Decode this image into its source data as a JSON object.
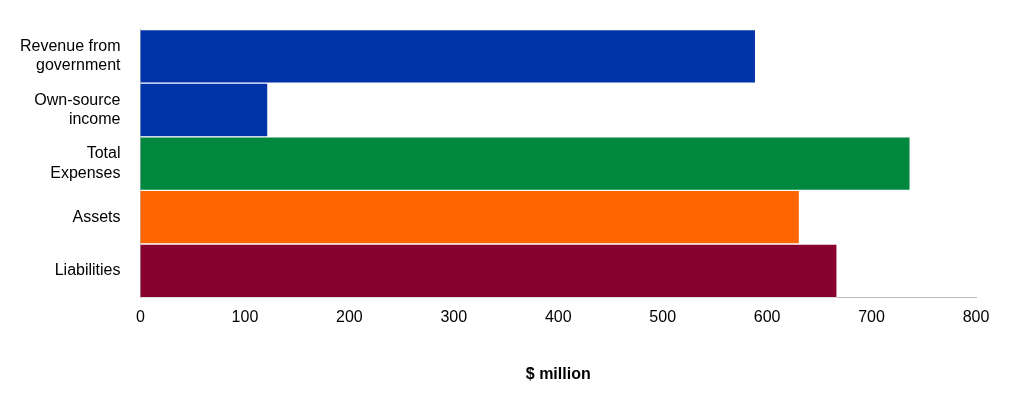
{
  "chart_data": {
    "type": "bar",
    "orientation": "horizontal",
    "xlabel": "$ million",
    "categories": [
      "Revenue from government",
      "Own-source income",
      "Total Expenses",
      "Assets",
      "Liabilities"
    ],
    "values": [
      589,
      122,
      737,
      631,
      667
    ],
    "colors": [
      "#0033a8",
      "#0033a8",
      "#00883f",
      "#ff6600",
      "#88002d"
    ],
    "xlim": [
      0,
      800
    ],
    "xticks": [
      0,
      100,
      200,
      300,
      400,
      500,
      600,
      700,
      800
    ],
    "grid": false,
    "legend": false
  }
}
